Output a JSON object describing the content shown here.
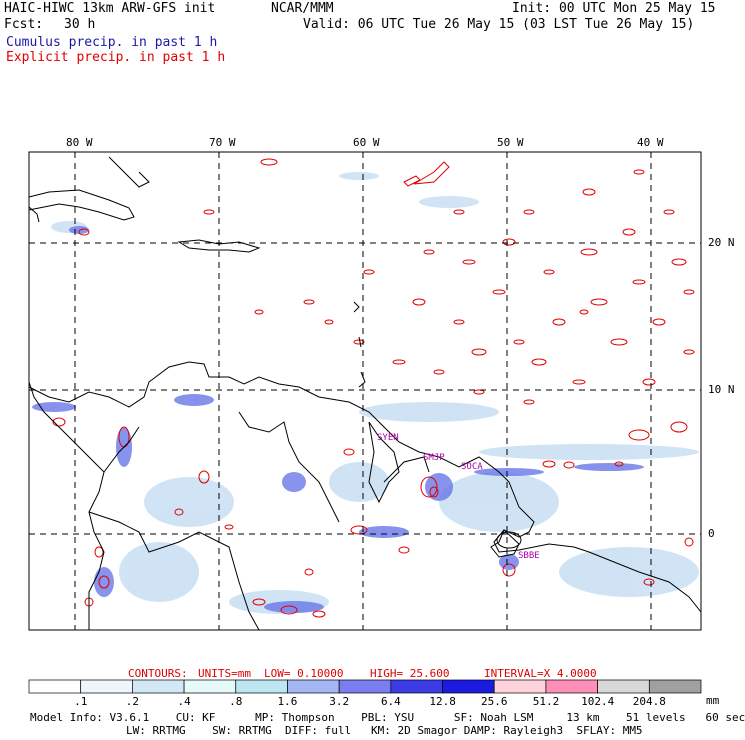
{
  "header": {
    "title": "HAIC-HIWC 13km ARW-GFS init",
    "org": "NCAR/MMM",
    "init": "Init: 00 UTC Mon 25 May 15",
    "fcst_label": "Fcst:",
    "fcst_value": "30 h",
    "valid": "Valid: 06 UTC Tue 26 May 15 (03 LST Tue 26 May 15)",
    "cumulus": "Cumulus precip. in past 1 h",
    "explicit": "Explicit precip. in past 1 h"
  },
  "colors": {
    "cumulus": "#1a1aa6",
    "explicit": "#e00000",
    "contour_line": "#e00000"
  },
  "map": {
    "lon_labels": [
      "80 W",
      "70 W",
      "60 W",
      "50 W",
      "40 W"
    ],
    "lat_labels": [
      "20 N",
      "10 N",
      "0"
    ],
    "stations": [
      "SYEN",
      "SMJP",
      "SOCA",
      "SBBE"
    ]
  },
  "contours": {
    "label": "CONTOURS:",
    "units": "UNITS=mm",
    "low": "LOW= 0.10000",
    "high": "HIGH= 25.600",
    "interval": "INTERVAL=X 4.0000"
  },
  "colorbar": {
    "bins": [
      "#ffffff",
      "#eef6fb",
      "#d2e8f5",
      "#e6fafa",
      "#bde7f0",
      "#a3b7f5",
      "#7b7ef0",
      "#3c3ce6",
      "#1a1ae0",
      "#ffd3dc",
      "#ff8fb8",
      "#d8d8d8",
      "#a0a0a0",
      "#404040",
      "#d8a8f0"
    ],
    "labels": [
      ".1",
      ".2",
      ".4",
      ".8",
      "1.6",
      "3.2",
      "6.4",
      "12.8",
      "25.6",
      "51.2",
      "102.4",
      "204.8"
    ],
    "unit": "mm"
  },
  "model_info": {
    "line1": "Model Info: V3.6.1    CU: KF      MP: Thompson    PBL: YSU      SF: Noah LSM     13 km    51 levels   60 sec",
    "line2": "LW: RRTMG    SW: RRTMG  DIFF: full   KM: 2D Smagor DAMP: Rayleigh3  SFLAY: MM5"
  }
}
